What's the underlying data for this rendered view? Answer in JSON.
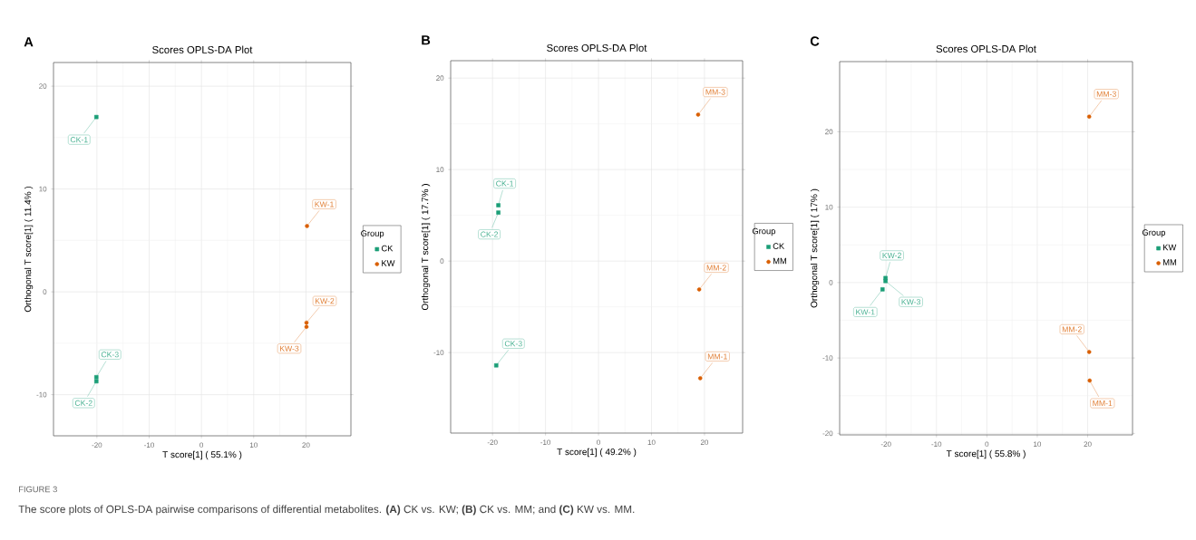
{
  "chart_data": [
    {
      "type": "scatter",
      "title": "Scores OPLS-DA Plot",
      "xlabel": "T score[1] ( 55.1% )",
      "ylabel": "Orthogonal T score[1] ( 11.4% )",
      "legend_title": "Group",
      "legend": "right",
      "grid": true,
      "xlim": [
        -28.3,
        28.6
      ],
      "ylim": [
        -14.0,
        22.3
      ],
      "xticks": [
        -20,
        -10,
        0,
        10,
        20
      ],
      "yticks": [
        -10,
        0,
        10,
        20
      ],
      "series": [
        {
          "name": "CK",
          "color": "#1b9e77",
          "marker": "square",
          "x": [
            -20.1,
            -20.1,
            -20.1
          ],
          "values": [
            17.0,
            -8.7,
            -8.3
          ]
        },
        {
          "name": "KW",
          "color": "#d95f02",
          "marker": "circle",
          "x": [
            20.2,
            20.1,
            20.1
          ],
          "values": [
            6.4,
            -3.0,
            -3.4
          ]
        }
      ],
      "annotations": [
        "A",
        "FIGURE 3",
        "The score plots of OPLS-DA pairwise comparisons of differential metabolites. **(A)** CK vs. KW; **(B)** CK vs. MM; and **(C)** KW vs. MM.",
        {
          "text": "CK-1",
          "x": -20.1,
          "y": 17.0
        },
        {
          "text": "CK-2",
          "x": -20.1,
          "y": -8.7
        },
        {
          "text": "CK-3",
          "x": -20.1,
          "y": -8.3
        },
        {
          "text": "KW-1",
          "x": 20.2,
          "y": 6.4
        },
        {
          "text": "KW-2",
          "x": 20.1,
          "y": -3.0
        },
        {
          "text": "KW-3",
          "x": 20.1,
          "y": -3.4
        }
      ]
    },
    {
      "type": "scatter",
      "title": "Scores OPLS-DA Plot",
      "xlabel": "T score[1] ( 49.2% )",
      "ylabel": "Orthogonal T score[1] ( 17.7% )",
      "legend_title": "Group",
      "legend": "right",
      "grid": true,
      "xlim": [
        -27.9,
        27.2
      ],
      "ylim": [
        -18.8,
        21.9
      ],
      "xticks": [
        -20,
        -10,
        0,
        10,
        20
      ],
      "yticks": [
        -10,
        0,
        10,
        20
      ],
      "series": [
        {
          "name": "CK",
          "color": "#1b9e77",
          "marker": "square",
          "x": [
            -18.9,
            -18.9,
            -19.3
          ],
          "values": [
            6.1,
            5.3,
            -11.4
          ]
        },
        {
          "name": "MM",
          "color": "#d95f02",
          "marker": "circle",
          "x": [
            19.2,
            19.0,
            18.8
          ],
          "values": [
            -12.8,
            -3.1,
            16.0
          ]
        }
      ],
      "annotations": [
        "B",
        {
          "text": "CK-1",
          "x": -18.9,
          "y": 6.1
        },
        {
          "text": "CK-2",
          "x": -18.9,
          "y": 5.3
        },
        {
          "text": "CK-3",
          "x": -19.3,
          "y": -11.4
        },
        {
          "text": "MM-1",
          "x": 19.2,
          "y": -12.8
        },
        {
          "text": "MM-2",
          "x": 19.0,
          "y": -3.1
        },
        {
          "text": "MM-3",
          "x": 18.8,
          "y": 16.0
        }
      ]
    },
    {
      "type": "scatter",
      "title": "Scores OPLS-DA Plot",
      "xlabel": "T score[1] ( 55.8% )",
      "ylabel": "Orthogonal T score[1] ( 17% )",
      "legend_title": "Group",
      "legend": "right",
      "grid": true,
      "xlim": [
        -29.2,
        28.9
      ],
      "ylim": [
        -20.2,
        29.3
      ],
      "xticks": [
        -20,
        -10,
        0,
        10,
        20
      ],
      "yticks": [
        -20,
        -10,
        0,
        10,
        20
      ],
      "series": [
        {
          "name": "KW",
          "color": "#1b9e77",
          "marker": "square",
          "x": [
            -20.7,
            -20.1,
            -20.1
          ],
          "values": [
            -0.9,
            0.6,
            0.2
          ]
        },
        {
          "name": "MM",
          "color": "#d95f02",
          "marker": "circle",
          "x": [
            20.4,
            20.3,
            20.3
          ],
          "values": [
            -13.0,
            -9.2,
            22.0
          ]
        }
      ],
      "annotations": [
        "C",
        {
          "text": "KW-1",
          "x": -20.7,
          "y": -0.9
        },
        {
          "text": "KW-2",
          "x": -20.1,
          "y": 0.6
        },
        {
          "text": "KW-3",
          "x": -20.1,
          "y": 0.2
        },
        {
          "text": "MM-1",
          "x": 20.4,
          "y": -13.0
        },
        {
          "text": "MM-2",
          "x": 20.3,
          "y": -9.2
        },
        {
          "text": "MM-3",
          "x": 20.3,
          "y": 22.0
        }
      ]
    }
  ]
}
